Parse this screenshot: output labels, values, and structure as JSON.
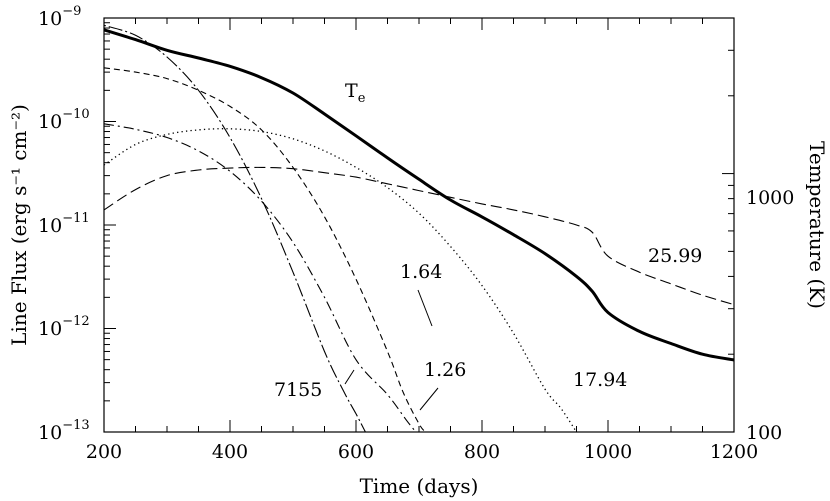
{
  "chart_data": {
    "type": "line",
    "xlabel": "Time (days)",
    "ylabel": "Line Flux (erg s⁻¹ cm⁻²)",
    "ylabel_right": "Temperature (K)",
    "xlim": [
      200,
      1200
    ],
    "ylim": [
      1e-13,
      1e-09
    ],
    "ylim_right": [
      100,
      4000
    ],
    "yscale": "log",
    "yscale_right": "log",
    "grid": false,
    "x_ticks": [
      "200",
      "400",
      "600",
      "800",
      "1000",
      "1200"
    ],
    "y_ticks": [
      {
        "value": 1e-09,
        "base": "10",
        "exp": "−9"
      },
      {
        "value": 1e-10,
        "base": "10",
        "exp": "−10"
      },
      {
        "value": 1e-11,
        "base": "10",
        "exp": "−11"
      },
      {
        "value": 1e-12,
        "base": "10",
        "exp": "−12"
      },
      {
        "value": 1e-13,
        "base": "10",
        "exp": "−13"
      }
    ],
    "y_right_ticks": [
      {
        "value": 100,
        "label": "100"
      },
      {
        "value": 1000,
        "label": "1000"
      }
    ],
    "series": [
      {
        "name": "T_e",
        "label_main": "T",
        "label_sub": "e",
        "axis": "right",
        "style": "thick",
        "x": [
          200,
          250,
          300,
          350,
          400,
          450,
          500,
          550,
          600,
          650,
          700,
          750,
          800,
          850,
          900,
          950,
          975,
          1000,
          1050,
          1100,
          1150,
          1200
        ],
        "y": [
          3600,
          3300,
          3000,
          2800,
          2600,
          2350,
          2050,
          1700,
          1400,
          1150,
          950,
          790,
          680,
          580,
          490,
          400,
          350,
          290,
          245,
          220,
          200,
          190
        ]
      },
      {
        "name": "25.99",
        "axis": "left",
        "style": "long-dash",
        "x": [
          200,
          250,
          300,
          350,
          400,
          450,
          500,
          550,
          600,
          650,
          700,
          750,
          800,
          850,
          900,
          950,
          975,
          1000,
          1050,
          1100,
          1150,
          1200
        ],
        "y": [
          1.4e-11,
          2.2e-11,
          3e-11,
          3.4e-11,
          3.55e-11,
          3.6e-11,
          3.5e-11,
          3.2e-11,
          2.9e-11,
          2.5e-11,
          2.15e-11,
          1.85e-11,
          1.6e-11,
          1.4e-11,
          1.2e-11,
          1e-11,
          8.5e-12,
          5e-12,
          3.5e-12,
          2.7e-12,
          2.1e-12,
          1.7e-12
        ]
      },
      {
        "name": "17.94",
        "axis": "left",
        "style": "dotted",
        "x": [
          200,
          250,
          300,
          350,
          400,
          450,
          500,
          550,
          600,
          650,
          700,
          750,
          800,
          850,
          900,
          925,
          950
        ],
        "y": [
          3.8e-11,
          6e-11,
          7.5e-11,
          8.3e-11,
          8.5e-11,
          8e-11,
          6.8e-11,
          5.2e-11,
          3.6e-11,
          2.3e-11,
          1.3e-11,
          6.2e-12,
          2.6e-12,
          9e-13,
          2.6e-13,
          1.7e-13,
          1e-13
        ]
      },
      {
        "name": "1.26",
        "axis": "left",
        "style": "short-dash",
        "x": [
          200,
          250,
          300,
          350,
          400,
          450,
          500,
          550,
          600,
          650,
          675,
          700,
          710
        ],
        "y": [
          3.3e-10,
          3e-10,
          2.6e-10,
          2e-10,
          1.4e-10,
          8.3e-11,
          3.6e-11,
          1.2e-11,
          3e-12,
          6e-13,
          2.4e-13,
          1.2e-13,
          1e-13
        ]
      },
      {
        "name": "1.64",
        "axis": "left",
        "style": "dash-dot",
        "x": [
          200,
          250,
          300,
          350,
          400,
          450,
          500,
          550,
          600,
          650,
          680,
          695
        ],
        "y": [
          9.5e-11,
          8.4e-11,
          7e-11,
          5.2e-11,
          3.3e-11,
          1.7e-11,
          6.8e-12,
          2e-12,
          5e-13,
          2.3e-13,
          1.3e-13,
          1e-13
        ]
      },
      {
        "name": "7155",
        "axis": "left",
        "style": "dot-long-dash",
        "x": [
          200,
          250,
          300,
          350,
          400,
          450,
          500,
          550,
          580,
          600,
          615
        ],
        "y": [
          8.5e-10,
          6.8e-10,
          4.2e-10,
          2e-10,
          7e-11,
          1.8e-11,
          3.5e-12,
          6e-13,
          2.5e-13,
          1.5e-13,
          1e-13
        ]
      }
    ]
  }
}
